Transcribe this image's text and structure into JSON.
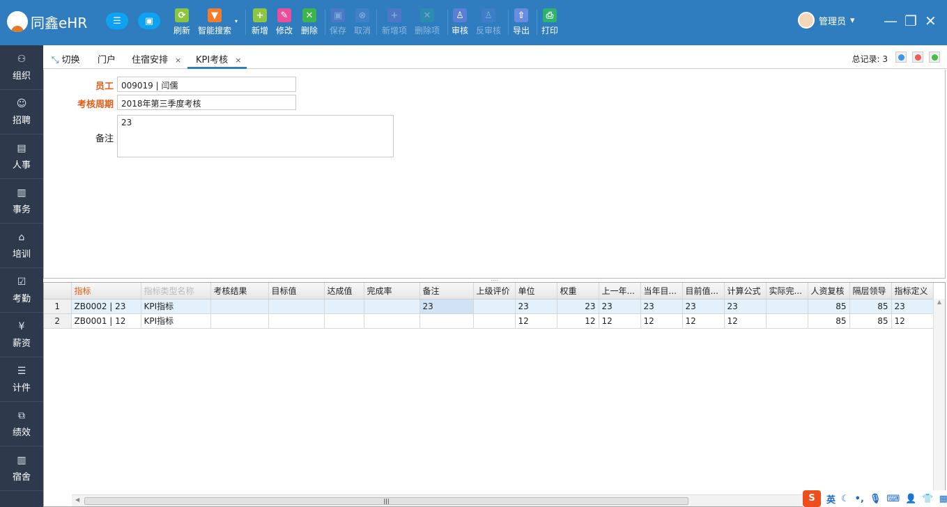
{
  "app": {
    "title": "同鑫eHR"
  },
  "toolbar": [
    {
      "label": "刷新",
      "icon": "refresh-icon",
      "color": "#8cc63f",
      "enabled": true
    },
    {
      "label": "智能搜索",
      "icon": "filter-icon",
      "color": "#f07c2c",
      "enabled": true
    },
    {
      "label": "新增",
      "icon": "plus-icon",
      "color": "#8dc63f",
      "enabled": true
    },
    {
      "label": "修改",
      "icon": "pencil-icon",
      "color": "#ec4e9c",
      "enabled": true
    },
    {
      "label": "删除",
      "icon": "x-icon",
      "color": "#3cb54a",
      "enabled": true
    },
    {
      "label": "保存",
      "icon": "save-icon",
      "color": "#8a6fd1",
      "enabled": false
    },
    {
      "label": "取消",
      "icon": "cancel-icon",
      "color": "#5b8ad6",
      "enabled": false
    },
    {
      "label": "新增项",
      "icon": "add-item-icon",
      "color": "#8a6fd1",
      "enabled": false
    },
    {
      "label": "删除项",
      "icon": "delete-item-icon",
      "color": "#26a69a",
      "enabled": false
    },
    {
      "label": "审核",
      "icon": "stamp-icon",
      "color": "#5a7fd6",
      "enabled": true
    },
    {
      "label": "反审核",
      "icon": "unstamp-icon",
      "color": "#5a7fd6",
      "enabled": false
    },
    {
      "label": "导出",
      "icon": "export-icon",
      "color": "#6a8ce0",
      "enabled": true
    },
    {
      "label": "打印",
      "icon": "print-icon",
      "color": "#2db36a",
      "enabled": true
    }
  ],
  "user": {
    "name": "管理员"
  },
  "sidebar": [
    {
      "label": "组织",
      "icon": "org-icon"
    },
    {
      "label": "招聘",
      "icon": "recruit-icon"
    },
    {
      "label": "人事",
      "icon": "personnel-icon"
    },
    {
      "label": "事务",
      "icon": "affairs-icon"
    },
    {
      "label": "培训",
      "icon": "training-icon"
    },
    {
      "label": "考勤",
      "icon": "attendance-icon"
    },
    {
      "label": "薪资",
      "icon": "salary-icon"
    },
    {
      "label": "计件",
      "icon": "piecework-icon"
    },
    {
      "label": "绩效",
      "icon": "performance-icon"
    },
    {
      "label": "宿舍",
      "icon": "dorm-icon"
    }
  ],
  "tabs": {
    "switch": "切换",
    "items": [
      {
        "label": "门户",
        "closable": false
      },
      {
        "label": "住宿安排",
        "closable": true
      },
      {
        "label": "KPI考核",
        "closable": true,
        "active": true
      }
    ],
    "close": "×",
    "total": "总记录: 3"
  },
  "form": {
    "employee_label": "员工",
    "employee_value": "009019 | 闫儒",
    "period_label": "考核周期",
    "period_value": "2018年第三季度考核",
    "remark_label": "备注",
    "remark_value": "23"
  },
  "grid": {
    "columns": [
      "指标",
      "指标类型名称",
      "考核结果",
      "目标值",
      "达成值",
      "完成率",
      "备注",
      "上级评价",
      "单位",
      "权重",
      "上一年...",
      "当年目...",
      "目前值...",
      "计算公式",
      "实际完...",
      "人资复核",
      "隔层领导",
      "指标定义"
    ],
    "rows": [
      [
        "1",
        "ZB0002 | 23",
        "KPI指标",
        "",
        "",
        "",
        "",
        "23",
        "",
        "23",
        "23",
        "23",
        "23",
        "23",
        "23",
        "",
        "85",
        "85",
        "23"
      ],
      [
        "2",
        "ZB0001 | 12",
        "KPI指标",
        "",
        "",
        "",
        "",
        "",
        "",
        "12",
        "12",
        "12",
        "12",
        "12",
        "12",
        "",
        "85",
        "85",
        "12"
      ]
    ]
  },
  "ime": {
    "lang": "英"
  }
}
